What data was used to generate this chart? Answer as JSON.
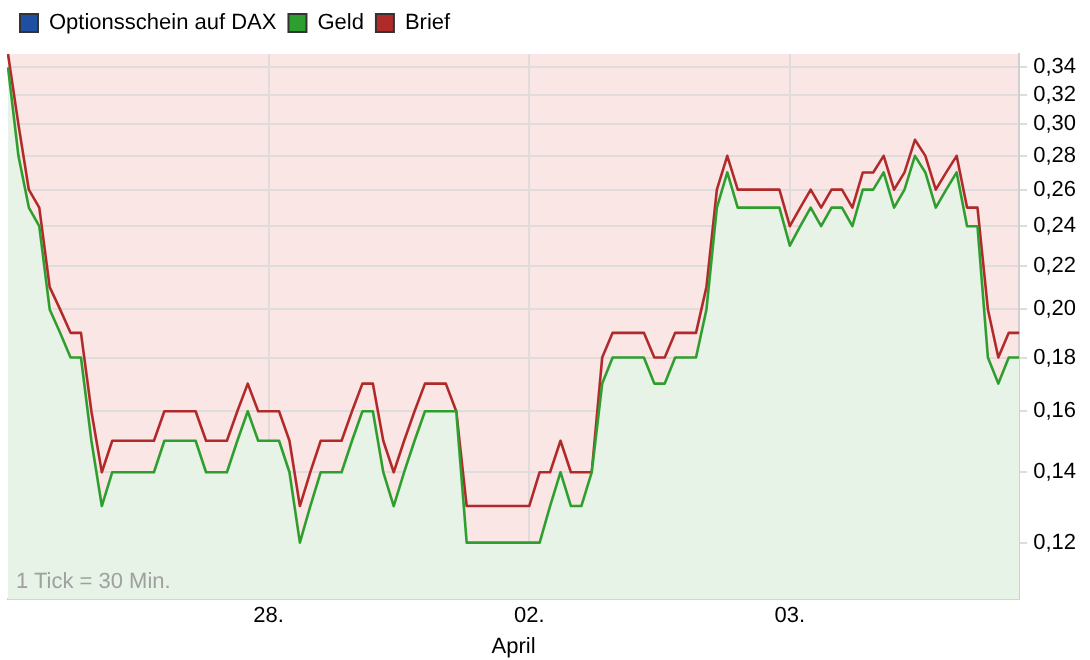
{
  "chart_data": {
    "type": "line",
    "log": "y",
    "grid": true,
    "legend": "top left",
    "marker": "none",
    "line_style": "solid",
    "categories": [
      null,
      null,
      null,
      null,
      null,
      null,
      null,
      null,
      null,
      null,
      null,
      null,
      null,
      null,
      null,
      null,
      null,
      null,
      null,
      null,
      null,
      null,
      null,
      null,
      null,
      "28.",
      null,
      null,
      null,
      null,
      null,
      null,
      null,
      null,
      null,
      null,
      null,
      null,
      null,
      null,
      null,
      null,
      null,
      null,
      null,
      null,
      null,
      null,
      null,
      null,
      "02.",
      null,
      null,
      null,
      null,
      null,
      null,
      null,
      null,
      null,
      null,
      null,
      null,
      null,
      null,
      null,
      null,
      null,
      null,
      null,
      null,
      null,
      null,
      null,
      null,
      "03.",
      null,
      null,
      null,
      null,
      null,
      null,
      null,
      null,
      null,
      null,
      null,
      null,
      null,
      null,
      null,
      null,
      null,
      null,
      null,
      null,
      null,
      null
    ],
    "ylim": [
      0.106,
      0.35
    ],
    "yticks": [
      {
        "value": 0.12,
        "label": "0,12"
      },
      {
        "value": 0.14,
        "label": "0,14"
      },
      {
        "value": 0.16,
        "label": "0,16"
      },
      {
        "value": 0.18,
        "label": "0,18"
      },
      {
        "value": 0.2,
        "label": "0,20"
      },
      {
        "value": 0.22,
        "label": "0,22"
      },
      {
        "value": 0.24,
        "label": "0,24"
      },
      {
        "value": 0.26,
        "label": "0,26"
      },
      {
        "value": 0.28,
        "label": "0,28"
      },
      {
        "value": 0.3,
        "label": "0,30"
      },
      {
        "value": 0.32,
        "label": "0,32"
      },
      {
        "value": 0.34,
        "label": "0,34"
      }
    ],
    "annotations": [
      "1 Tick = 30 Min."
    ],
    "xlabel": "April",
    "series": [
      {
        "name": "Optionsschein auf DAX",
        "color": "#1f4fa0",
        "values": [
          null,
          null,
          null,
          null,
          null,
          null,
          null,
          null,
          null,
          null,
          null,
          null,
          null,
          null,
          null,
          null,
          null,
          null,
          null,
          null,
          null,
          null,
          null,
          null,
          null,
          null,
          null,
          null,
          null,
          null,
          null,
          null,
          null,
          null,
          null,
          null,
          null,
          null,
          null,
          null,
          null,
          null,
          null,
          null,
          null,
          null,
          null,
          null,
          null,
          null,
          null,
          null,
          null,
          null,
          null,
          null,
          null,
          null,
          null,
          null,
          null,
          null,
          null,
          null,
          null,
          null,
          null,
          null,
          null,
          null,
          null,
          null,
          null,
          null,
          null,
          null,
          null,
          null,
          null,
          null,
          null,
          null,
          null,
          null,
          null,
          null,
          null,
          null,
          null,
          null,
          null,
          null,
          null,
          null,
          null,
          null,
          null,
          null
        ]
      },
      {
        "name": "Geld",
        "type": "area",
        "color": "#2e9e2e",
        "values": [
          0.34,
          0.28,
          0.25,
          0.24,
          0.2,
          0.19,
          0.18,
          0.18,
          0.15,
          0.13,
          0.14,
          0.14,
          0.14,
          0.14,
          0.14,
          0.15,
          0.15,
          0.15,
          0.15,
          0.14,
          0.14,
          0.14,
          0.15,
          0.16,
          0.15,
          0.15,
          0.15,
          0.14,
          0.12,
          0.13,
          0.14,
          0.14,
          0.14,
          0.15,
          0.16,
          0.16,
          0.14,
          0.13,
          0.14,
          0.15,
          0.16,
          0.16,
          0.16,
          0.16,
          0.12,
          0.12,
          0.12,
          0.12,
          0.12,
          0.12,
          0.12,
          0.12,
          0.13,
          0.14,
          0.13,
          0.13,
          0.14,
          0.17,
          0.18,
          0.18,
          0.18,
          0.18,
          0.17,
          0.17,
          0.18,
          0.18,
          0.18,
          0.2,
          0.25,
          0.27,
          0.25,
          0.25,
          0.25,
          0.25,
          0.25,
          0.23,
          0.24,
          0.25,
          0.24,
          0.25,
          0.25,
          0.24,
          0.26,
          0.26,
          0.27,
          0.25,
          0.26,
          0.28,
          0.27,
          0.25,
          0.26,
          0.27,
          0.24,
          0.24,
          0.18,
          0.17,
          0.18,
          0.18
        ]
      },
      {
        "name": "Brief",
        "color": "#b02a2a",
        "values": [
          0.35,
          0.3,
          0.26,
          0.25,
          0.21,
          0.2,
          0.19,
          0.19,
          0.16,
          0.14,
          0.15,
          0.15,
          0.15,
          0.15,
          0.15,
          0.16,
          0.16,
          0.16,
          0.16,
          0.15,
          0.15,
          0.15,
          0.16,
          0.17,
          0.16,
          0.16,
          0.16,
          0.15,
          0.13,
          0.14,
          0.15,
          0.15,
          0.15,
          0.16,
          0.17,
          0.17,
          0.15,
          0.14,
          0.15,
          0.16,
          0.17,
          0.17,
          0.17,
          0.16,
          0.13,
          0.13,
          0.13,
          0.13,
          0.13,
          0.13,
          0.13,
          0.14,
          0.14,
          0.15,
          0.14,
          0.14,
          0.14,
          0.18,
          0.19,
          0.19,
          0.19,
          0.19,
          0.18,
          0.18,
          0.19,
          0.19,
          0.19,
          0.21,
          0.26,
          0.28,
          0.26,
          0.26,
          0.26,
          0.26,
          0.26,
          0.24,
          0.25,
          0.26,
          0.25,
          0.26,
          0.26,
          0.25,
          0.27,
          0.27,
          0.28,
          0.26,
          0.27,
          0.29,
          0.28,
          0.26,
          0.27,
          0.28,
          0.25,
          0.25,
          0.2,
          0.18,
          0.19,
          0.19
        ]
      }
    ]
  }
}
